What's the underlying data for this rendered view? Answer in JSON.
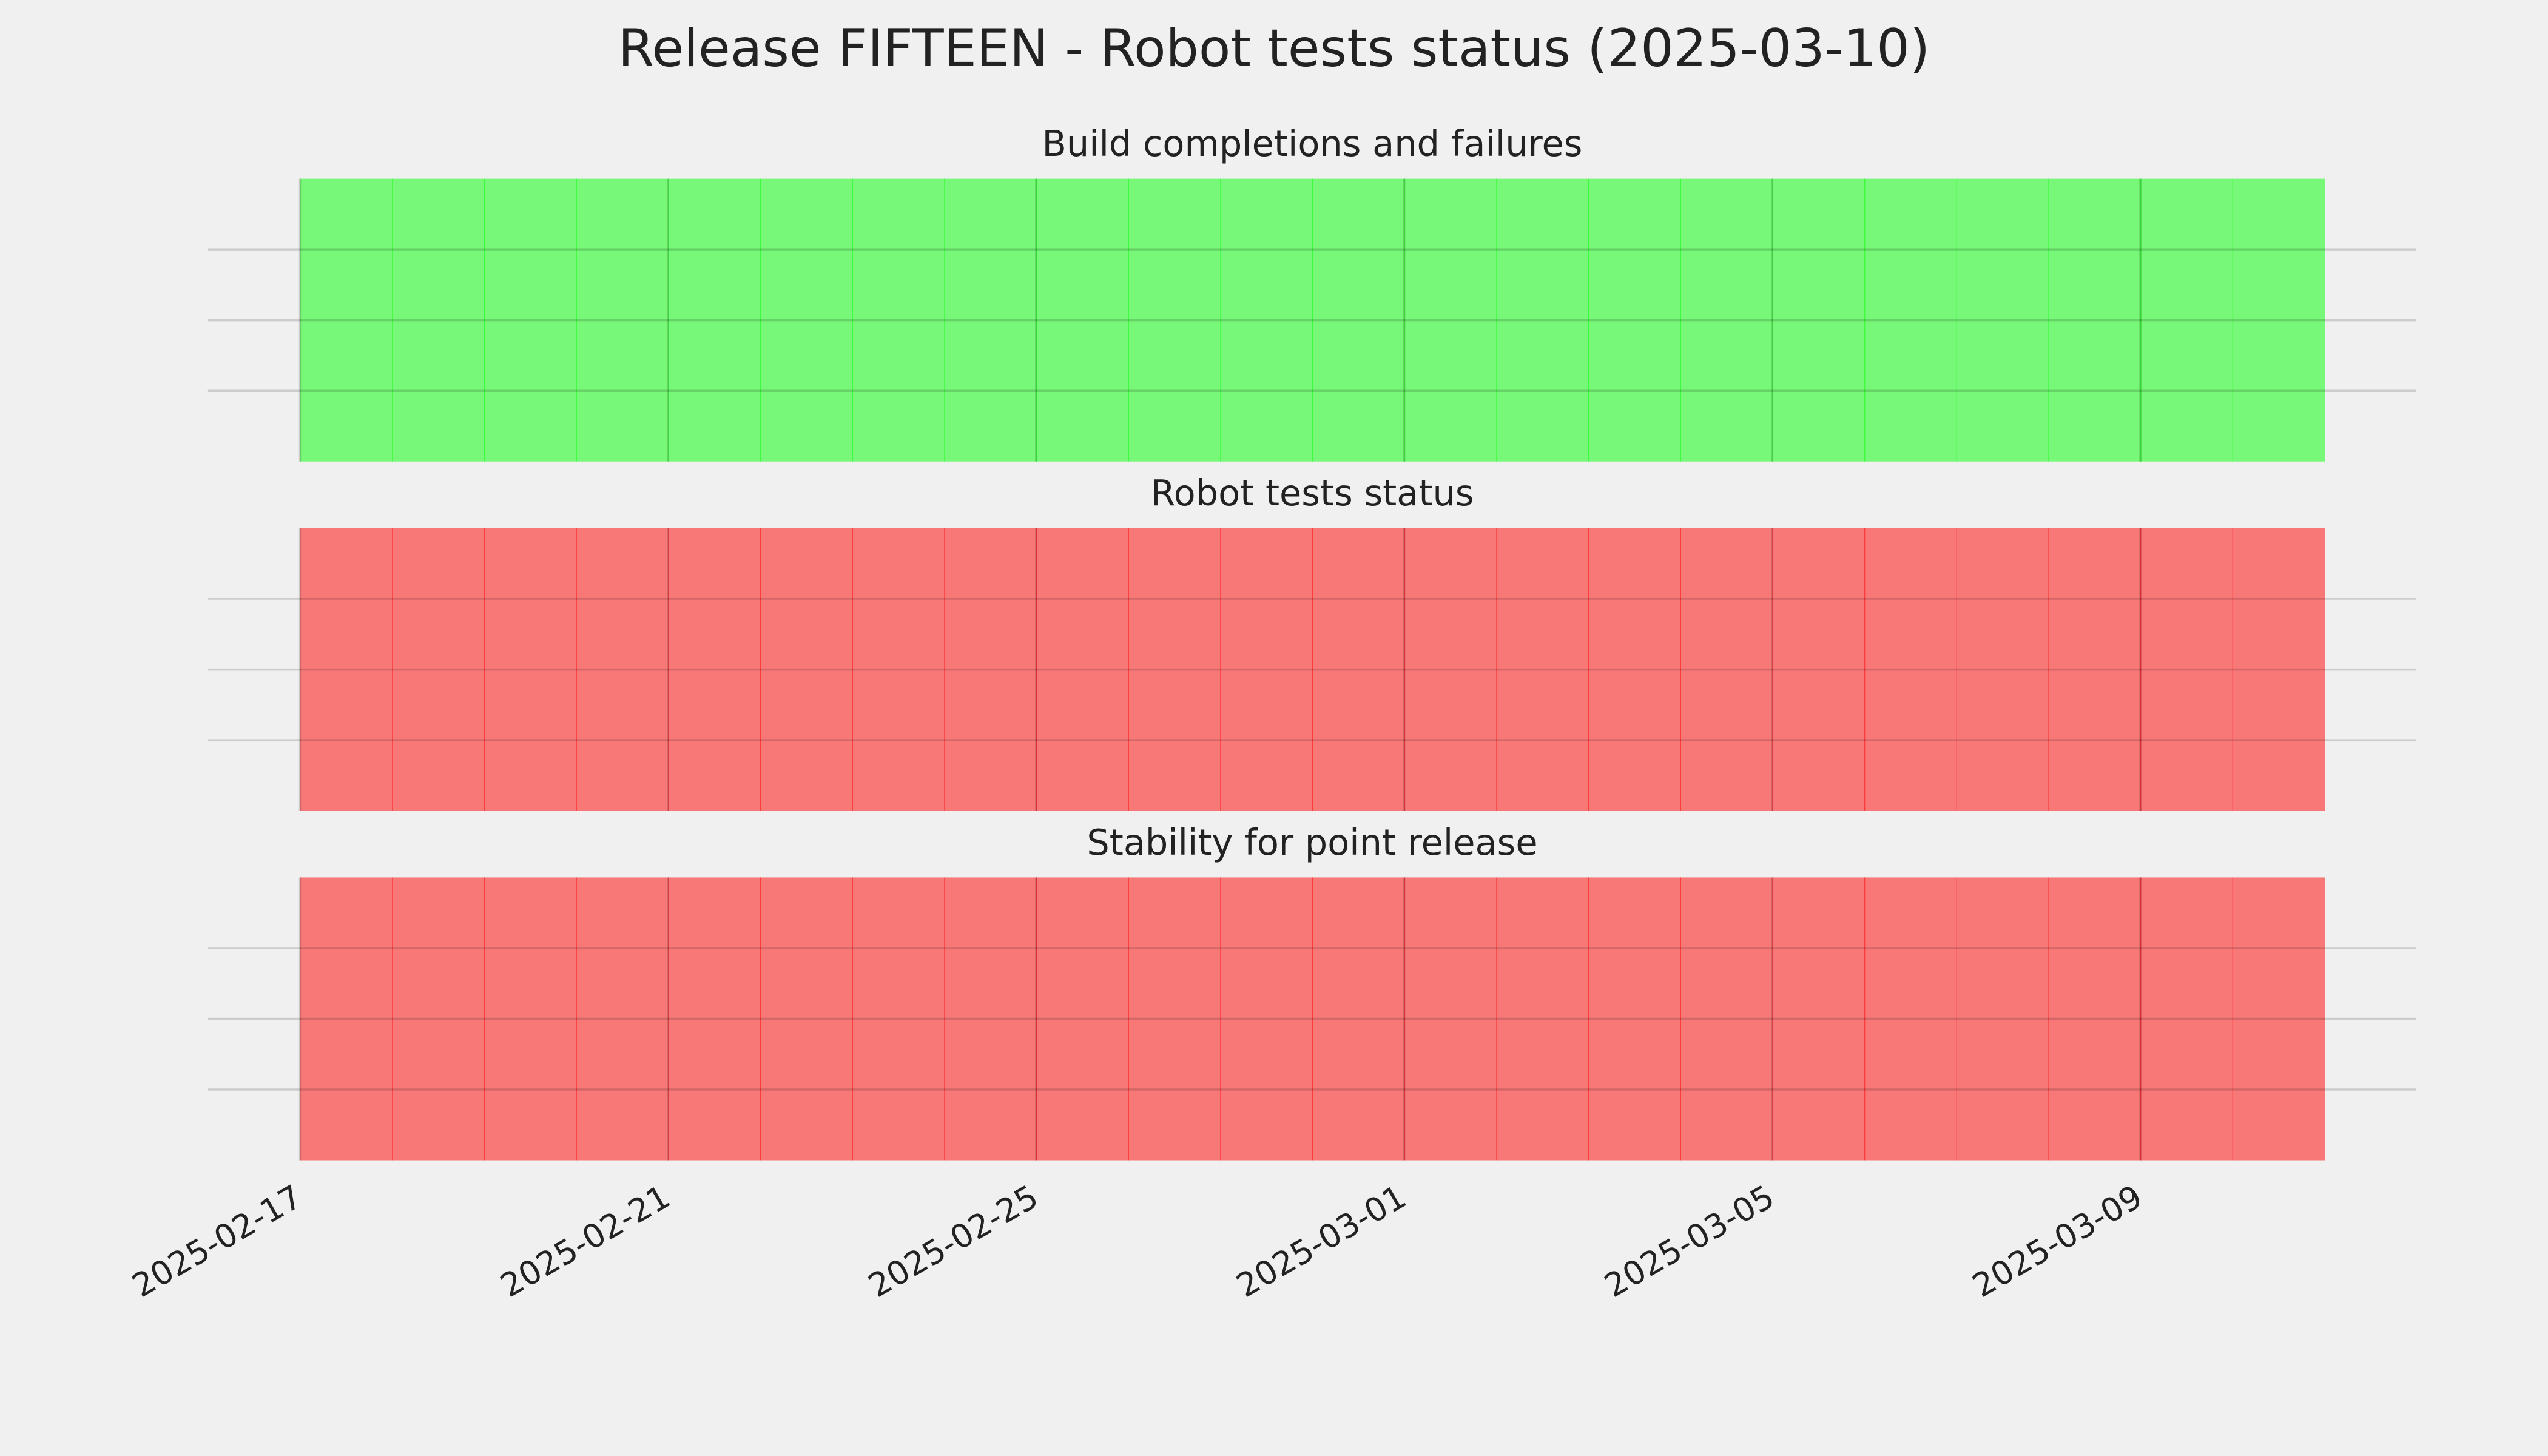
{
  "title": "Release FIFTEEN - Robot tests status (2025-03-10)",
  "chart_data": [
    {
      "type": "bar",
      "title": "Build completions and failures",
      "x": [
        "2025-02-17",
        "2025-02-18",
        "2025-02-19",
        "2025-02-20",
        "2025-02-21",
        "2025-02-22",
        "2025-02-23",
        "2025-02-24",
        "2025-02-25",
        "2025-02-26",
        "2025-02-27",
        "2025-02-28",
        "2025-03-01",
        "2025-03-02",
        "2025-03-03",
        "2025-03-04",
        "2025-03-05",
        "2025-03-06",
        "2025-03-07",
        "2025-03-08",
        "2025-03-09",
        "2025-03-10"
      ],
      "values": [
        1,
        1,
        1,
        1,
        1,
        1,
        1,
        1,
        1,
        1,
        1,
        1,
        1,
        1,
        1,
        1,
        1,
        1,
        1,
        1,
        1,
        1
      ],
      "color": "#00ff00",
      "alpha": 0.5,
      "xlim": [
        "2025-02-16",
        "2025-03-12"
      ],
      "xticks": [
        "2025-02-17",
        "2025-02-21",
        "2025-02-25",
        "2025-03-01",
        "2025-03-05",
        "2025-03-09"
      ],
      "ylim": [
        0,
        1
      ],
      "yticks": [
        0.25,
        0.5,
        0.75
      ],
      "grid": true
    },
    {
      "type": "bar",
      "title": "Robot tests status",
      "x": [
        "2025-02-17",
        "2025-02-18",
        "2025-02-19",
        "2025-02-20",
        "2025-02-21",
        "2025-02-22",
        "2025-02-23",
        "2025-02-24",
        "2025-02-25",
        "2025-02-26",
        "2025-02-27",
        "2025-02-28",
        "2025-03-01",
        "2025-03-02",
        "2025-03-03",
        "2025-03-04",
        "2025-03-05",
        "2025-03-06",
        "2025-03-07",
        "2025-03-08",
        "2025-03-09",
        "2025-03-10"
      ],
      "values": [
        1,
        1,
        1,
        1,
        1,
        1,
        1,
        1,
        1,
        1,
        1,
        1,
        1,
        1,
        1,
        1,
        1,
        1,
        1,
        1,
        1,
        1
      ],
      "color": "#ff0000",
      "alpha": 0.5,
      "xlim": [
        "2025-02-16",
        "2025-03-12"
      ],
      "xticks": [
        "2025-02-17",
        "2025-02-21",
        "2025-02-25",
        "2025-03-01",
        "2025-03-05",
        "2025-03-09"
      ],
      "ylim": [
        0,
        1
      ],
      "yticks": [
        0.25,
        0.5,
        0.75
      ],
      "grid": true
    },
    {
      "type": "bar",
      "title": "Stability for point release",
      "x": [
        "2025-02-17",
        "2025-02-18",
        "2025-02-19",
        "2025-02-20",
        "2025-02-21",
        "2025-02-22",
        "2025-02-23",
        "2025-02-24",
        "2025-02-25",
        "2025-02-26",
        "2025-02-27",
        "2025-02-28",
        "2025-03-01",
        "2025-03-02",
        "2025-03-03",
        "2025-03-04",
        "2025-03-05",
        "2025-03-06",
        "2025-03-07",
        "2025-03-08",
        "2025-03-09",
        "2025-03-10"
      ],
      "values": [
        1,
        1,
        1,
        1,
        1,
        1,
        1,
        1,
        1,
        1,
        1,
        1,
        1,
        1,
        1,
        1,
        1,
        1,
        1,
        1,
        1,
        1
      ],
      "color": "#ff0000",
      "alpha": 0.5,
      "xlim": [
        "2025-02-16",
        "2025-03-12"
      ],
      "xticks": [
        "2025-02-17",
        "2025-02-21",
        "2025-02-25",
        "2025-03-01",
        "2025-03-05",
        "2025-03-09"
      ],
      "ylim": [
        0,
        1
      ],
      "yticks": [
        0.25,
        0.5,
        0.75
      ],
      "grid": true,
      "show_xtick_labels": true
    }
  ]
}
